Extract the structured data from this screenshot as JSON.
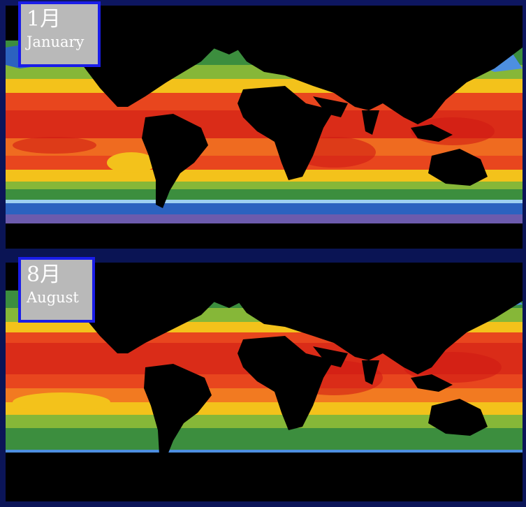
{
  "panels": [
    {
      "month_label": "1月",
      "name_label": "January",
      "season_colors": [
        "#d11a14",
        "#e8461e",
        "#f27a21",
        "#f3c21b",
        "#f2e24b",
        "#86b738",
        "#3c8e3e",
        "#2c62bf",
        "#4d8fe0",
        "#6c5bad"
      ]
    },
    {
      "month_label": "8月",
      "name_label": "August",
      "season_colors": [
        "#d11a14",
        "#e8461e",
        "#f27a21",
        "#f3c21b",
        "#f2e24b",
        "#86b738",
        "#3c8e3e",
        "#2c62bf",
        "#4d8fe0",
        "#6c5bad"
      ]
    }
  ],
  "land_color": "#000000",
  "frame_color": "#1a1de8",
  "background_color": "#0c1558"
}
